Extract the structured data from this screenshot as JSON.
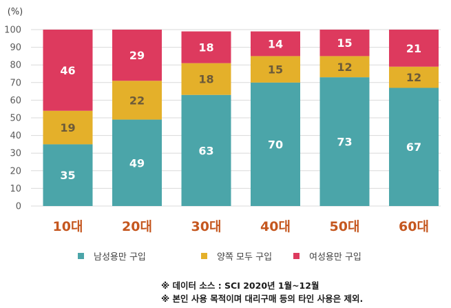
{
  "chart_data": {
    "type": "bar",
    "stacked": true,
    "ylabel": "(%)",
    "ylim": [
      0,
      100
    ],
    "yticks": [
      0,
      10,
      20,
      30,
      40,
      50,
      60,
      70,
      80,
      90,
      100
    ],
    "grid": true,
    "categories": [
      "10대",
      "20대",
      "30대",
      "40대",
      "50대",
      "60대"
    ],
    "series": [
      {
        "name": "남성용만 구입",
        "color": "#4ba5a9",
        "values": [
          35,
          49,
          63,
          70,
          73,
          67
        ]
      },
      {
        "name": "양쪽 모두 구입",
        "color": "#e4b02a",
        "values": [
          19,
          22,
          18,
          15,
          12,
          12
        ]
      },
      {
        "name": "여성용만 구입",
        "color": "#dd3a5e",
        "values": [
          46,
          29,
          18,
          14,
          15,
          21
        ]
      }
    ],
    "legend_position": "bottom"
  },
  "colors": {
    "category_label": "#c5571f",
    "value_label_on_teal": "#ffffff",
    "value_label_on_gold": "#6b5a3a",
    "value_label_on_red": "#ffffff",
    "grid": "#d9d9d9",
    "axis_text": "#595959"
  },
  "notes": {
    "source": "※ 데이터 소스 : SCI    2020년 1월~12월",
    "exclusion": "※ 본인 사용 목적이며 대리구매 등의 타인 사용은 제외."
  }
}
